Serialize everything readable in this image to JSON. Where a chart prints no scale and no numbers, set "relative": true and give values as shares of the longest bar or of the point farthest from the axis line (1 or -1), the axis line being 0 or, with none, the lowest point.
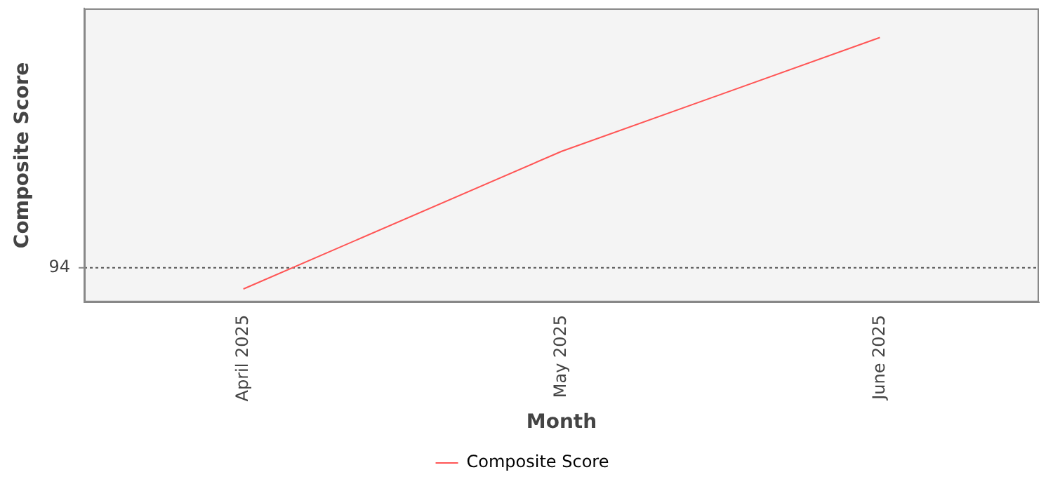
{
  "chart_data": {
    "type": "line",
    "relative": true,
    "xlabel": "Month",
    "ylabel": "Composite Score",
    "categories": [
      "April 2025",
      "May 2025",
      "June 2025"
    ],
    "series": [
      {
        "name": "Composite Score",
        "color": "#ff5555",
        "values": [
          0.05,
          0.57,
          1
        ]
      }
    ],
    "ref_lines": [
      {
        "axis": "y",
        "value": 0.13,
        "color": "#555555",
        "line_style": "dotted"
      }
    ],
    "annotations": [
      "94"
    ],
    "legend": "bottom",
    "grid": false,
    "marker": "none",
    "line_style": "solid"
  }
}
